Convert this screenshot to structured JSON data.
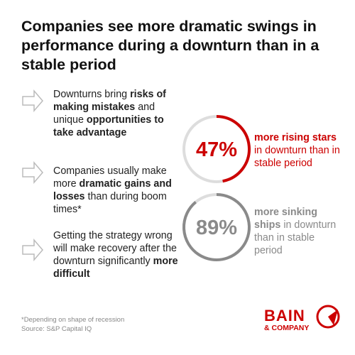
{
  "header": {
    "title": "Companies see more dramatic swings in performance during a downturn than in a stable period"
  },
  "points": [
    {
      "segments": [
        {
          "text": "Downturns bring ",
          "bold": false
        },
        {
          "text": "risks of making mistakes",
          "bold": true
        },
        {
          "text": " and unique ",
          "bold": false
        },
        {
          "text": "opportunities to take advantage",
          "bold": true
        }
      ]
    },
    {
      "segments": [
        {
          "text": "Companies usually make more ",
          "bold": false
        },
        {
          "text": "dramatic gains and losses",
          "bold": true
        },
        {
          "text": " than during boom times*",
          "bold": false
        }
      ]
    },
    {
      "segments": [
        {
          "text": "Getting the strategy wrong will make recovery after the downturn significantly ",
          "bold": false
        },
        {
          "text": "more difficult",
          "bold": true
        }
      ]
    }
  ],
  "stats": [
    {
      "value": 47,
      "value_label": "47%",
      "color": "#cc0000",
      "segments": [
        {
          "text": "more rising stars",
          "bold": true
        },
        {
          "text": " in downturn than in stable period",
          "bold": false
        }
      ]
    },
    {
      "value": 89,
      "value_label": "89%",
      "color": "#8a8a8a",
      "segments": [
        {
          "text": "more sinking ships",
          "bold": true
        },
        {
          "text": " in downturn than in stable period",
          "bold": false
        }
      ]
    }
  ],
  "footnotes": [
    "*Depending on shape of recession",
    "Source: S&P Capital IQ"
  ],
  "logo": {
    "name": "BAIN",
    "sub": "& COMPANY"
  }
}
